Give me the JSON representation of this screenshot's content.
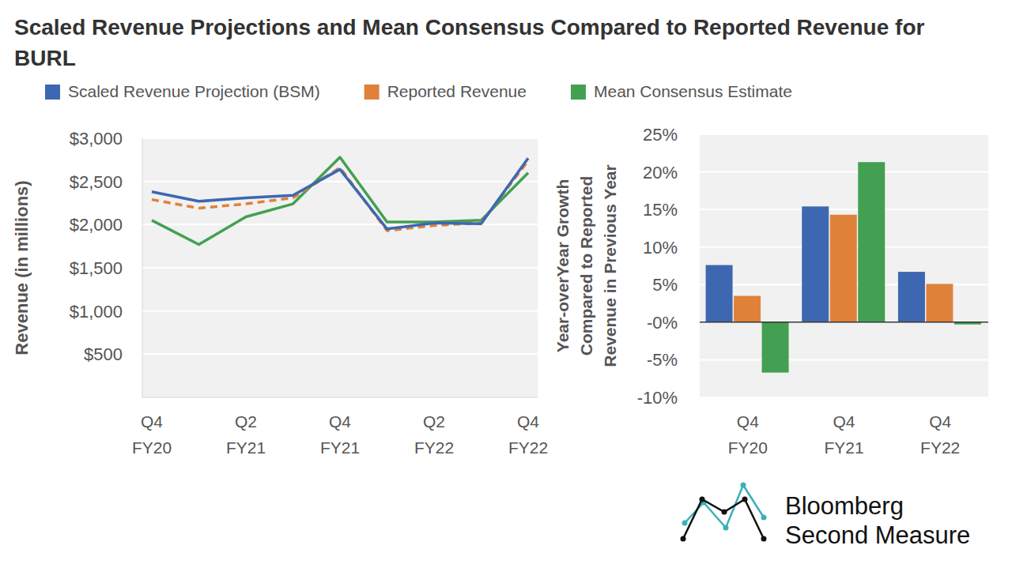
{
  "chart_data": [
    {
      "type": "line",
      "title": "Scaled Revenue Projections and Mean Consensus Compared to Reported Revenue for BURL",
      "y_label": "Revenue (in millions)",
      "categories": [
        "Q4 FY20",
        null,
        "Q2 FY21",
        null,
        "Q4 FY21",
        null,
        "Q2 FY22",
        null,
        "Q4 FY22"
      ],
      "series": [
        {
          "name": "Scaled Revenue Projection (BSM)",
          "color": "#3d67b1",
          "line_style": "solid",
          "values": [
            2380,
            2270,
            2310,
            2340,
            2640,
            1950,
            2020,
            2010,
            2770
          ]
        },
        {
          "name": "Reported Revenue",
          "color": "#e0813a",
          "line_style": "dashed",
          "values": [
            2290,
            2190,
            2240,
            2310,
            2660,
            1930,
            1990,
            2020,
            2740
          ]
        },
        {
          "name": "Mean Consensus Estimate",
          "color": "#43a052",
          "line_style": "solid",
          "values": [
            2050,
            1770,
            2090,
            2240,
            2780,
            2030,
            2030,
            2050,
            2600
          ]
        }
      ],
      "ylim": [
        0,
        3000
      ],
      "yticks": [
        {
          "value": 500,
          "label": "$500"
        },
        {
          "value": 1000,
          "label": "$1,000"
        },
        {
          "value": 1500,
          "label": "$1,500"
        },
        {
          "value": 2000,
          "label": "$2,000"
        },
        {
          "value": 2500,
          "label": "$2,500"
        },
        {
          "value": 3000,
          "label": "$3,000"
        }
      ],
      "grid": true,
      "legend": "top"
    },
    {
      "type": "bar",
      "y_label": [
        "Year-overYear Growth",
        "Compared to Reported",
        "Revenue in Previous Year"
      ],
      "categories": [
        "Q4 FY20",
        "Q4 FY21",
        "Q4 FY22"
      ],
      "series": [
        {
          "color": "#3d67b1",
          "values": [
            7.6,
            15.4,
            6.7
          ]
        },
        {
          "color": "#e0813a",
          "values": [
            3.5,
            14.3,
            5.1
          ]
        },
        {
          "color": "#43a052",
          "values": [
            -6.7,
            21.3,
            -0.3
          ]
        }
      ],
      "ylim": [
        -10,
        25
      ],
      "yticks": [
        {
          "value": -10,
          "label": "-10%"
        },
        {
          "value": -5,
          "label": "-5%"
        },
        {
          "value": 0,
          "label": "-0%"
        },
        {
          "value": 5,
          "label": "5%"
        },
        {
          "value": 10,
          "label": "10%"
        },
        {
          "value": 15,
          "label": "15%"
        },
        {
          "value": 20,
          "label": "20%"
        },
        {
          "value": 25,
          "label": "25%"
        }
      ],
      "grid": true
    }
  ],
  "footer": [
    "Bloomberg",
    "Second Measure"
  ]
}
